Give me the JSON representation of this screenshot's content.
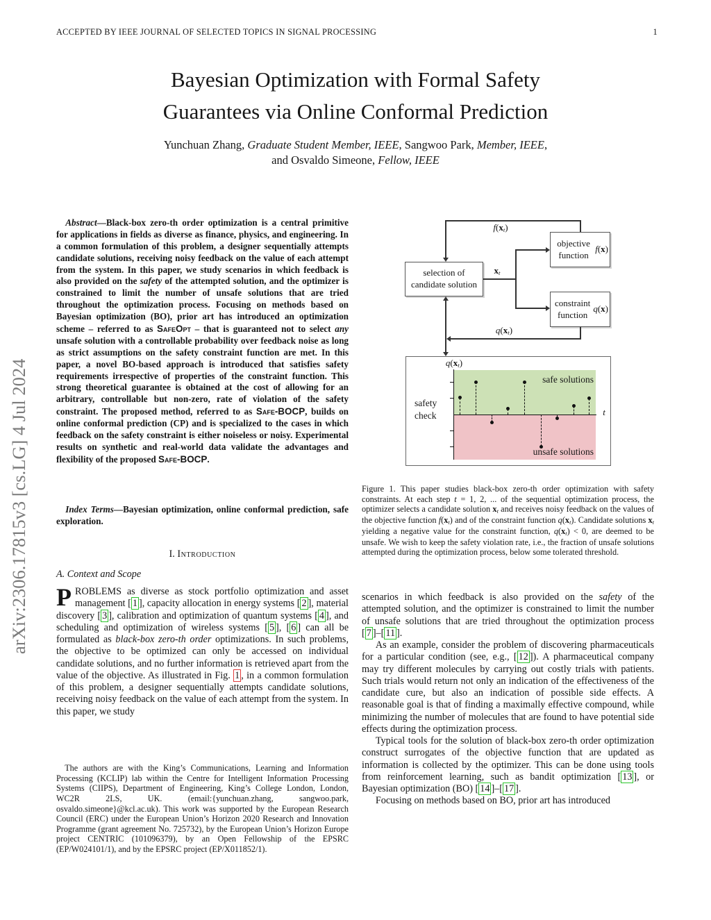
{
  "colors": {
    "safe_region_fill": "#cde1b6",
    "unsafe_region_fill": "#f0c3c7",
    "citation_box": "#2bc42b",
    "figure_ref_box": "#e23b3b",
    "arxiv_stamp_gray": "#7b7b7b"
  },
  "header": {
    "left": "ACCEPTED BY IEEE JOURNAL OF SELECTED TOPICS IN SIGNAL PROCESSING",
    "page_number": "1"
  },
  "arxiv_stamp": "arXiv:2306.17815v3  [cs.LG]  4 Jul 2024",
  "title": {
    "line1": "Bayesian Optimization with Formal Safety",
    "line2": "Guarantees via Online Conformal Prediction"
  },
  "authors": {
    "line1": [
      "Yunchuan Zhang, ",
      {
        "t": "Graduate Student Member, IEEE",
        "s": "i"
      },
      ", Sangwoo Park, ",
      {
        "t": "Member, IEEE",
        "s": "i"
      },
      ","
    ],
    "line2": [
      "and Osvaldo Simeone, ",
      {
        "t": "Fellow, IEEE",
        "s": "i"
      }
    ]
  },
  "abstract": {
    "paragraph": [
      {
        "t": "Abstract",
        "s": "i"
      },
      "—Black-box zero-th order optimization is a central primitive for applications in fields as diverse as finance, physics, and engineering. In a common formulation of this problem, a designer sequentially attempts candidate solutions, receiving noisy feedback on the value of each attempt from the system. In this paper, we study scenarios in which feedback is also provided on the ",
      {
        "t": "safety",
        "s": "i"
      },
      " of the attempted solution, and the optimizer is constrained to limit the number of unsafe solutions that are tried throughout the optimization process. Focusing on methods based on Bayesian optimization (BO), prior art has introduced an optimization scheme – referred to as ",
      {
        "t": "SafeOpt",
        "s": "sc"
      },
      " – that is guaranteed not to select ",
      {
        "t": "any",
        "s": "i"
      },
      " unsafe solution with a controllable probability over feedback noise as long as strict assumptions on the safety constraint function are met. In this paper, a novel BO-based approach is introduced that satisfies safety requirements irrespective of properties of the constraint function. This strong theoretical guarantee is obtained at the cost of allowing for an arbitrary, controllable but non-zero, rate of violation of the safety constraint. The proposed method, referred to as ",
      {
        "t": "Safe-BOCP",
        "s": "sc"
      },
      ", builds on online conformal prediction (CP) and is specialized to the cases in which feedback on the safety constraint is either noiseless or noisy. Experimental results on synthetic and real-world data validate the advantages and flexibility of the proposed ",
      {
        "t": "Safe-BOCP",
        "s": "sc"
      },
      "."
    ]
  },
  "index_terms": {
    "paragraph": [
      {
        "t": "Index Terms",
        "s": "i"
      },
      "—Bayesian optimization, online conformal prediction, safe exploration."
    ]
  },
  "sections": {
    "intro_heading": [
      "I. ",
      {
        "t": "Introduction",
        "s": "schead"
      }
    ],
    "subsection_a": "A. Context and Scope"
  },
  "left_column": {
    "intro_paragraph": [
      {
        "t": "P",
        "s": "dropcap"
      },
      "ROBLEMS as diverse as stock portfolio optimization and asset management [",
      {
        "t": "1",
        "s": "cite"
      },
      "], capacity allocation in energy systems [",
      {
        "t": "2",
        "s": "cite"
      },
      "], material discovery [",
      {
        "t": "3",
        "s": "cite"
      },
      "], calibration and optimization of quantum systems [",
      {
        "t": "4",
        "s": "cite"
      },
      "], and scheduling and optimization of wireless systems [",
      {
        "t": "5",
        "s": "cite"
      },
      "], [",
      {
        "t": "6",
        "s": "cite"
      },
      "] can all be formulated as ",
      {
        "t": "black-box zero-th order",
        "s": "i"
      },
      " optimizations. In such problems, the objective to be optimized can only be accessed on individual candidate solutions, and no further information is retrieved apart from the value of the objective. As illustrated in Fig. ",
      {
        "t": "1",
        "s": "figref"
      },
      ", in a common formulation of this problem, a designer sequentially attempts candidate solutions, receiving noisy feedback on the value of each attempt from the system. In this paper, we study"
    ],
    "footnote": "The authors are with the King’s Communications, Learning and Information Processing (KCLIP) lab within the Centre for Intelligent Information Processing Systems (CIIPS), Department of Engineering, King’s College London, London, WC2R 2LS, UK. (email:{yunchuan.zhang, sangwoo.park, osvaldo.simeone}@kcl.ac.uk). This work was supported by the European Research Council (ERC) under the European Union’s Horizon 2020 Research and Innovation Programme (grant agreement No. 725732), by the European Union’s Horizon Europe project CENTRIC (101096379), by an Open Fellowship of the EPSRC (EP/W024101/1), and by the EPSRC project (EP/X011852/1)."
  },
  "figure": {
    "caption": [
      "Figure 1.  This paper studies black-box zero-th order optimization with safety constraints. At each step ",
      {
        "t": "t",
        "s": "math"
      },
      " = 1, 2, ... of the sequential optimization process, the optimizer selects a candidate solution ",
      {
        "t": "x",
        "s": "mbf"
      },
      {
        "t": "t",
        "s": "sub"
      },
      " and receives noisy feedback on the values of the objective function ",
      {
        "t": "f",
        "s": "math"
      },
      "(",
      {
        "t": "x",
        "s": "mbf"
      },
      {
        "t": "t",
        "s": "sub"
      },
      ") and of the constraint function ",
      {
        "t": "q",
        "s": "math"
      },
      "(",
      {
        "t": "x",
        "s": "mbf"
      },
      {
        "t": "t",
        "s": "sub"
      },
      "). Candidate solutions ",
      {
        "t": "x",
        "s": "mbf"
      },
      {
        "t": "t",
        "s": "sub"
      },
      " yielding a negative value for the constraint function, ",
      {
        "t": "q",
        "s": "math"
      },
      "(",
      {
        "t": "x",
        "s": "mbf"
      },
      {
        "t": "t",
        "s": "sub"
      },
      ") < 0, are deemed to be unsafe. We wish to keep the safety violation rate, i.e., the fraction of unsafe solutions attempted during the optimization process, below some tolerated threshold."
    ],
    "diagram": {
      "selection_box": "selection of candidate solution",
      "objective_box": [
        "objective function ",
        {
          "t": "f",
          "s": "math"
        },
        "(",
        {
          "t": "x",
          "s": "mbf"
        },
        ")"
      ],
      "constraint_box": [
        "constraint function ",
        {
          "t": "q",
          "s": "math"
        },
        "(",
        {
          "t": "x",
          "s": "mbf"
        },
        ")"
      ],
      "label_f": [
        {
          "t": "f",
          "s": "math"
        },
        "(",
        {
          "t": "x",
          "s": "mbf"
        },
        {
          "t": "t",
          "s": "sub"
        },
        ")"
      ],
      "label_x": [
        {
          "t": "x",
          "s": "mbf"
        },
        {
          "t": "t",
          "s": "sub"
        }
      ],
      "label_q": [
        {
          "t": "q",
          "s": "math"
        },
        "(",
        {
          "t": "x",
          "s": "mbf"
        },
        {
          "t": "t",
          "s": "sub"
        },
        ")"
      ],
      "safety_check": "safety check",
      "axis_label": [
        {
          "t": "q",
          "s": "math"
        },
        "(",
        {
          "t": "x",
          "s": "mbf"
        },
        {
          "t": "t",
          "s": "sub"
        },
        ")"
      ],
      "t_label": "t",
      "safe_label": "safe solutions",
      "unsafe_label": "unsafe solutions"
    },
    "plot": {
      "type": "stem",
      "x": [
        0.045,
        0.16,
        0.27,
        0.385,
        0.5,
        0.615,
        0.73,
        0.845,
        0.955
      ],
      "q": [
        0.38,
        0.73,
        -0.17,
        0.13,
        0.73,
        -0.71,
        -0.08,
        0.19,
        0.36
      ],
      "ticks": [
        0.73,
        0.38,
        -0.35,
        -0.71
      ],
      "xlabel": "t",
      "ylabel": "q(x_t)",
      "colors": {
        "safe": "#cde1b6",
        "unsafe": "#f0c3c7"
      }
    }
  },
  "right_column": {
    "p1": [
      "scenarios in which feedback is also provided on the ",
      {
        "t": "safety",
        "s": "i"
      },
      " of the attempted solution, and the optimizer is constrained to limit the number of unsafe solutions that are tried throughout the optimization process [",
      {
        "t": "7",
        "s": "cite"
      },
      "]–[",
      {
        "t": "11",
        "s": "cite"
      },
      "]."
    ],
    "p2": [
      "As an example, consider the problem of discovering pharmaceuticals for a particular condition (see, e.g., [",
      {
        "t": "12",
        "s": "cite"
      },
      "]). A pharmaceutical company may try different molecules by carrying out costly trials with patients. Such trials would return not only an indication of the effectiveness of the candidate cure, but also an indication of possible side effects. A reasonable goal is that of finding a maximally effective compound, while minimizing the number of molecules that are found to have potential side effects during the optimization process."
    ],
    "p3": [
      "Typical tools for the solution of black-box zero-th order optimization construct surrogates of the objective function that are updated as information is collected by the optimizer. This can be done using tools from reinforcement learning, such as bandit optimization [",
      {
        "t": "13",
        "s": "cite"
      },
      "], or Bayesian optimization (BO) [",
      {
        "t": "14",
        "s": "cite"
      },
      "]–[",
      {
        "t": "17",
        "s": "cite"
      },
      "]."
    ],
    "p4": [
      "Focusing on methods based on BO, prior art has introduced"
    ]
  }
}
